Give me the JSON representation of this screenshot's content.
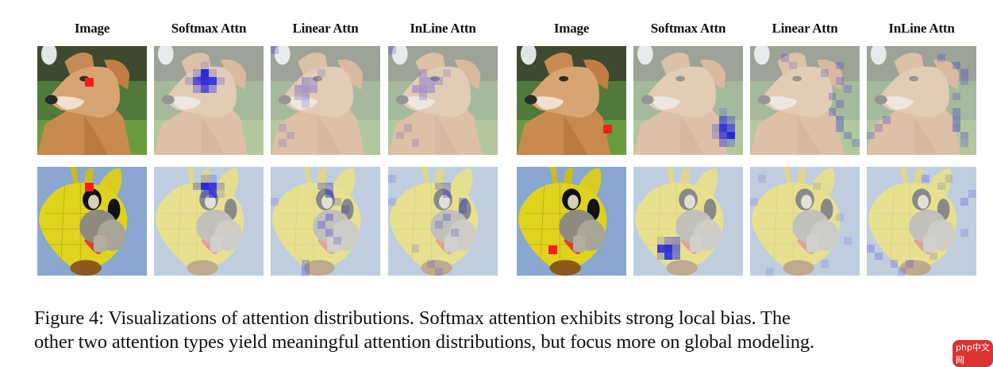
{
  "figure": {
    "column_headers": [
      "Image",
      "Softmax Attn",
      "Linear Attn",
      "InLine Attn",
      "Image",
      "Softmax Attn",
      "Linear Attn",
      "InLine Attn"
    ],
    "rows": [
      {
        "subject": "dog",
        "groups": [
          {
            "query_cell": [
              4,
              6
            ],
            "softmax": [
              [
                3,
                6,
                0.95
              ],
              [
                4,
                6,
                0.9
              ],
              [
                4,
                5,
                0.7
              ],
              [
                4,
                7,
                0.85
              ],
              [
                5,
                6,
                0.7
              ],
              [
                5,
                5,
                0.3
              ],
              [
                5,
                7,
                0.35
              ],
              [
                3,
                5,
                0.25
              ],
              [
                3,
                7,
                0.2
              ],
              [
                4,
                4,
                0.2
              ],
              [
                4,
                8,
                0.2
              ],
              [
                2,
                6,
                0.15
              ]
            ],
            "linear": [
              [
                4,
                4,
                0.25
              ],
              [
                4,
                5,
                0.2
              ],
              [
                5,
                3,
                0.25
              ],
              [
                5,
                4,
                0.3
              ],
              [
                5,
                5,
                0.25
              ],
              [
                6,
                3,
                0.2
              ],
              [
                6,
                4,
                0.25
              ],
              [
                3,
                6,
                0.15
              ],
              [
                7,
                4,
                0.15
              ],
              [
                10,
                1,
                0.15
              ],
              [
                11,
                2,
                0.15
              ],
              [
                12,
                1,
                0.15
              ],
              [
                0,
                0,
                0.2
              ]
            ],
            "inline": [
              [
                3,
                4,
                0.2
              ],
              [
                4,
                4,
                0.25
              ],
              [
                4,
                5,
                0.25
              ],
              [
                4,
                6,
                0.2
              ],
              [
                5,
                3,
                0.25
              ],
              [
                5,
                4,
                0.3
              ],
              [
                5,
                5,
                0.25
              ],
              [
                6,
                4,
                0.2
              ],
              [
                3,
                7,
                0.15
              ],
              [
                10,
                2,
                0.15
              ],
              [
                11,
                1,
                0.15
              ],
              [
                12,
                3,
                0.15
              ],
              [
                0,
                0,
                0.2
              ]
            ]
          },
          {
            "query_cell": [
              10,
              11
            ],
            "softmax": [
              [
                9,
                11,
                0.55
              ],
              [
                10,
                11,
                0.85
              ],
              [
                10,
                12,
                0.6
              ],
              [
                11,
                12,
                0.95
              ],
              [
                11,
                11,
                0.7
              ],
              [
                12,
                11,
                0.4
              ],
              [
                9,
                12,
                0.3
              ],
              [
                10,
                10,
                0.25
              ],
              [
                11,
                10,
                0.2
              ],
              [
                12,
                12,
                0.25
              ],
              [
                8,
                11,
                0.15
              ]
            ],
            "linear": [
              [
                1,
                4,
                0.2
              ],
              [
                2,
                5,
                0.15
              ],
              [
                3,
                9,
                0.2
              ],
              [
                4,
                11,
                0.2
              ],
              [
                6,
                10,
                0.25
              ],
              [
                7,
                11,
                0.25
              ],
              [
                8,
                10,
                0.25
              ],
              [
                9,
                11,
                0.3
              ],
              [
                10,
                11,
                0.3
              ],
              [
                11,
                12,
                0.25
              ],
              [
                12,
                13,
                0.2
              ],
              [
                2,
                11,
                0.2
              ],
              [
                5,
                12,
                0.2
              ]
            ],
            "inline": [
              [
                1,
                9,
                0.2
              ],
              [
                2,
                11,
                0.25
              ],
              [
                3,
                12,
                0.25
              ],
              [
                4,
                12,
                0.2
              ],
              [
                6,
                11,
                0.2
              ],
              [
                8,
                11,
                0.25
              ],
              [
                9,
                11,
                0.3
              ],
              [
                10,
                11,
                0.35
              ],
              [
                11,
                12,
                0.25
              ],
              [
                9,
                2,
                0.25
              ],
              [
                10,
                1,
                0.2
              ],
              [
                11,
                0,
                0.2
              ],
              [
                12,
                12,
                0.2
              ]
            ]
          }
        ]
      },
      {
        "subject": "bunny hot-air balloon",
        "groups": [
          {
            "query_cell": [
              2,
              6
            ],
            "softmax": [
              [
                2,
                6,
                0.95
              ],
              [
                2,
                7,
                0.85
              ],
              [
                3,
                7,
                0.7
              ],
              [
                3,
                6,
                0.3
              ],
              [
                2,
                5,
                0.3
              ],
              [
                2,
                8,
                0.25
              ],
              [
                1,
                6,
                0.2
              ],
              [
                1,
                7,
                0.2
              ],
              [
                3,
                8,
                0.15
              ]
            ],
            "linear": [
              [
                2,
                6,
                0.3
              ],
              [
                2,
                7,
                0.35
              ],
              [
                3,
                7,
                0.45
              ],
              [
                4,
                8,
                0.2
              ],
              [
                5,
                9,
                0.25
              ],
              [
                6,
                7,
                0.3
              ],
              [
                7,
                6,
                0.25
              ],
              [
                8,
                7,
                0.25
              ],
              [
                9,
                8,
                0.2
              ],
              [
                12,
                4,
                0.25
              ],
              [
                13,
                4,
                0.25
              ],
              [
                4,
                0,
                0.15
              ],
              [
                5,
                9,
                0.2
              ]
            ],
            "inline": [
              [
                2,
                6,
                0.25
              ],
              [
                2,
                7,
                0.3
              ],
              [
                3,
                7,
                0.3
              ],
              [
                4,
                9,
                0.3
              ],
              [
                5,
                9,
                0.25
              ],
              [
                6,
                7,
                0.25
              ],
              [
                7,
                6,
                0.2
              ],
              [
                8,
                8,
                0.2
              ],
              [
                1,
                0,
                0.15
              ],
              [
                4,
                0,
                0.15
              ],
              [
                12,
                5,
                0.15
              ],
              [
                13,
                6,
                0.15
              ],
              [
                10,
                3,
                0.15
              ]
            ]
          },
          {
            "query_cell": [
              10,
              4
            ],
            "softmax": [
              [
                9,
                4,
                0.35
              ],
              [
                9,
                5,
                0.4
              ],
              [
                10,
                3,
                0.85
              ],
              [
                10,
                4,
                0.9
              ],
              [
                10,
                5,
                0.55
              ],
              [
                11,
                4,
                0.85
              ],
              [
                11,
                5,
                0.5
              ],
              [
                11,
                3,
                0.25
              ],
              [
                9,
                3,
                0.15
              ]
            ],
            "linear": [
              [
                1,
                1,
                0.12
              ],
              [
                2,
                8,
                0.12
              ],
              [
                4,
                0,
                0.12
              ],
              [
                6,
                11,
                0.12
              ],
              [
                9,
                12,
                0.12
              ],
              [
                12,
                9,
                0.12
              ],
              [
                13,
                2,
                0.12
              ]
            ],
            "inline": [
              [
                1,
                7,
                0.2
              ],
              [
                2,
                9,
                0.15
              ],
              [
                3,
                13,
                0.15
              ],
              [
                4,
                12,
                0.2
              ],
              [
                8,
                12,
                0.15
              ],
              [
                10,
                0,
                0.2
              ],
              [
                11,
                1,
                0.2
              ],
              [
                12,
                3,
                0.2
              ],
              [
                12,
                5,
                0.2
              ],
              [
                13,
                4,
                0.15
              ],
              [
                11,
                8,
                0.15
              ],
              [
                1,
                10,
                0.15
              ]
            ]
          }
        ]
      }
    ],
    "marker_color": "#ff1a1a",
    "attention_color": "#2020e0"
  },
  "caption": {
    "line1": "Figure 4: Visualizations of attention distributions. Softmax attention exhibits strong local bias. The",
    "line2": "other two attention types yield meaningful attention distributions, but focus more on global modeling."
  },
  "watermark": "php中文网"
}
